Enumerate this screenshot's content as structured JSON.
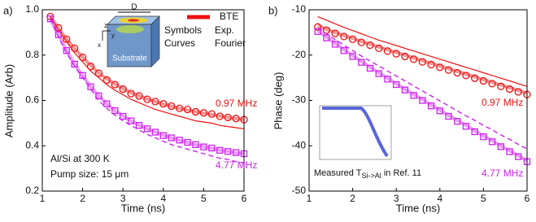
{
  "chart_data": [
    {
      "type": "line",
      "panel_label": "a)",
      "y_label": "Amplitude (Arb)",
      "x_label": "Time (ns)",
      "xlim": [
        1,
        6
      ],
      "xticks": [
        1,
        2,
        3,
        4,
        5,
        6
      ],
      "ylim": [
        0.2,
        1
      ],
      "yticks": [
        0.2,
        0.4,
        0.6,
        0.8,
        {
          "value": 1,
          "label": "1.0"
        }
      ],
      "legend": [
        "BTE",
        "Symbols",
        "Exp.",
        "Curves",
        "Fourier"
      ],
      "annotations": [
        "0.97 MHz",
        "4.77 MHz",
        "Al/Si at 300 K",
        "Pump size: 15 μm"
      ],
      "inset_labels": [
        "D",
        "z",
        "y",
        "x",
        "Substrate"
      ],
      "x": [
        1.2,
        1.4,
        1.6,
        1.8,
        2.0,
        2.2,
        2.4,
        2.6,
        2.8,
        3.0,
        3.2,
        3.4,
        3.6,
        3.8,
        4.0,
        4.2,
        4.4,
        4.6,
        4.8,
        5.0,
        5.2,
        5.4,
        5.6,
        5.8,
        6.0
      ],
      "series": [
        {
          "color": "#ee1111",
          "style": "thick",
          "values": [
            0.97,
            0.92,
            0.87,
            0.83,
            0.79,
            0.755,
            0.72,
            0.695,
            0.672,
            0.652,
            0.634,
            0.62,
            0.606,
            0.595,
            0.584,
            0.574,
            0.565,
            0.558,
            0.55,
            0.544,
            0.538,
            0.531,
            0.525,
            0.52,
            0.515
          ]
        },
        {
          "color": "#ee1111",
          "style": "thin",
          "values": [
            0.97,
            0.91,
            0.86,
            0.81,
            0.77,
            0.73,
            0.7,
            0.67,
            0.645,
            0.625,
            0.605,
            0.59,
            0.575,
            0.56,
            0.55,
            0.54,
            0.53,
            0.52,
            0.51,
            0.505,
            0.5,
            0.49,
            0.485,
            0.48,
            0.475
          ]
        },
        {
          "color": "#ee1111",
          "style": "circle",
          "values": [
            0.97,
            0.92,
            0.87,
            0.83,
            0.79,
            0.75,
            0.72,
            0.69,
            0.67,
            0.65,
            0.63,
            0.62,
            0.605,
            0.595,
            0.585,
            0.575,
            0.565,
            0.56,
            0.55,
            0.545,
            0.54,
            0.53,
            0.525,
            0.52,
            0.515
          ]
        },
        {
          "color": "#cc22ee",
          "style": "thick",
          "values": [
            0.96,
            0.89,
            0.82,
            0.76,
            0.71,
            0.66,
            0.62,
            0.585,
            0.556,
            0.531,
            0.51,
            0.491,
            0.475,
            0.46,
            0.446,
            0.435,
            0.424,
            0.414,
            0.405,
            0.396,
            0.389,
            0.381,
            0.375,
            0.369,
            0.364
          ]
        },
        {
          "color": "#cc22ee",
          "style": "dashed",
          "values": [
            0.96,
            0.88,
            0.81,
            0.75,
            0.7,
            0.65,
            0.6,
            0.565,
            0.535,
            0.51,
            0.49,
            0.47,
            0.45,
            0.435,
            0.42,
            0.405,
            0.395,
            0.385,
            0.375,
            0.365,
            0.355,
            0.345,
            0.34,
            0.33,
            0.325
          ]
        },
        {
          "color": "#cc22ee",
          "style": "square",
          "values": [
            0.96,
            0.89,
            0.82,
            0.76,
            0.71,
            0.66,
            0.62,
            0.585,
            0.555,
            0.53,
            0.51,
            0.49,
            0.475,
            0.46,
            0.445,
            0.435,
            0.425,
            0.415,
            0.405,
            0.395,
            0.39,
            0.38,
            0.375,
            0.37,
            0.365
          ]
        }
      ]
    },
    {
      "type": "line",
      "panel_label": "b)",
      "y_label": "Phase (deg)",
      "x_label": "Time (ns)",
      "xlim": [
        1,
        6
      ],
      "xticks": [
        1,
        2,
        3,
        4,
        5,
        6
      ],
      "ylim": [
        -50,
        -10
      ],
      "yticks": [
        -50,
        -40,
        -30,
        -20,
        -10
      ],
      "annotations": [
        "0.97 MHz",
        "4.77 MHz"
      ],
      "inset_caption": [
        "Measured T",
        "Si->Al",
        " in Ref. 11"
      ],
      "x": [
        1.2,
        1.4,
        1.6,
        1.8,
        2.0,
        2.2,
        2.4,
        2.6,
        2.8,
        3.0,
        3.2,
        3.4,
        3.6,
        3.8,
        4.0,
        4.2,
        4.4,
        4.6,
        4.8,
        5.0,
        5.2,
        5.4,
        5.6,
        5.8,
        6.0
      ],
      "series": [
        {
          "color": "#ee1111",
          "style": "thick",
          "values": [
            -13.5,
            -14.3,
            -15.0,
            -15.7,
            -16.3,
            -17.0,
            -17.6,
            -18.2,
            -18.8,
            -19.4,
            -20.0,
            -20.6,
            -21.2,
            -21.8,
            -22.4,
            -23.0,
            -23.6,
            -24.2,
            -24.8,
            -25.4,
            -26.0,
            -26.6,
            -27.2,
            -27.8,
            -28.4
          ]
        },
        {
          "color": "#ee1111",
          "style": "thin",
          "values": [
            -11.5,
            -12.3,
            -13.1,
            -13.9,
            -14.6,
            -15.3,
            -16.0,
            -16.7,
            -17.3,
            -17.9,
            -18.5,
            -19.1,
            -19.7,
            -20.3,
            -20.9,
            -21.5,
            -22.1,
            -22.7,
            -23.3,
            -23.9,
            -24.5,
            -25.1,
            -25.7,
            -26.3,
            -26.9
          ]
        },
        {
          "color": "#ee1111",
          "style": "circle",
          "values": [
            -13.8,
            -14.5,
            -15.2,
            -15.9,
            -16.5,
            -17.2,
            -17.8,
            -18.5,
            -19.1,
            -19.7,
            -20.3,
            -20.9,
            -21.5,
            -22.1,
            -22.7,
            -23.3,
            -23.9,
            -24.5,
            -25.1,
            -25.7,
            -26.3,
            -26.9,
            -27.5,
            -28.1,
            -28.7
          ]
        },
        {
          "color": "#cc22ee",
          "style": "thick",
          "values": [
            -14.6,
            -16.0,
            -17.4,
            -18.8,
            -20.1,
            -21.4,
            -22.7,
            -23.9,
            -25.1,
            -26.3,
            -27.5,
            -28.7,
            -29.8,
            -31.0,
            -32.1,
            -33.3,
            -34.4,
            -35.5,
            -36.7,
            -37.8,
            -38.9,
            -40.0,
            -41.1,
            -42.2,
            -43.3
          ]
        },
        {
          "color": "#cc22ee",
          "style": "dashed",
          "values": [
            -14.0,
            -15.3,
            -16.6,
            -17.8,
            -19.0,
            -20.2,
            -21.3,
            -22.4,
            -23.5,
            -24.6,
            -25.7,
            -26.8,
            -27.9,
            -29.0,
            -30.1,
            -31.2,
            -32.3,
            -33.4,
            -34.4,
            -35.5,
            -36.5,
            -37.6,
            -38.6,
            -39.7,
            -40.7
          ]
        },
        {
          "color": "#cc22ee",
          "style": "square",
          "values": [
            -14.8,
            -16.2,
            -17.6,
            -19.0,
            -20.3,
            -21.6,
            -22.9,
            -24.1,
            -25.3,
            -26.5,
            -27.7,
            -28.9,
            -30.0,
            -31.2,
            -32.3,
            -33.5,
            -34.6,
            -35.7,
            -36.9,
            -38.0,
            -39.1,
            -40.2,
            -41.3,
            -42.4,
            -43.5
          ]
        }
      ]
    }
  ]
}
